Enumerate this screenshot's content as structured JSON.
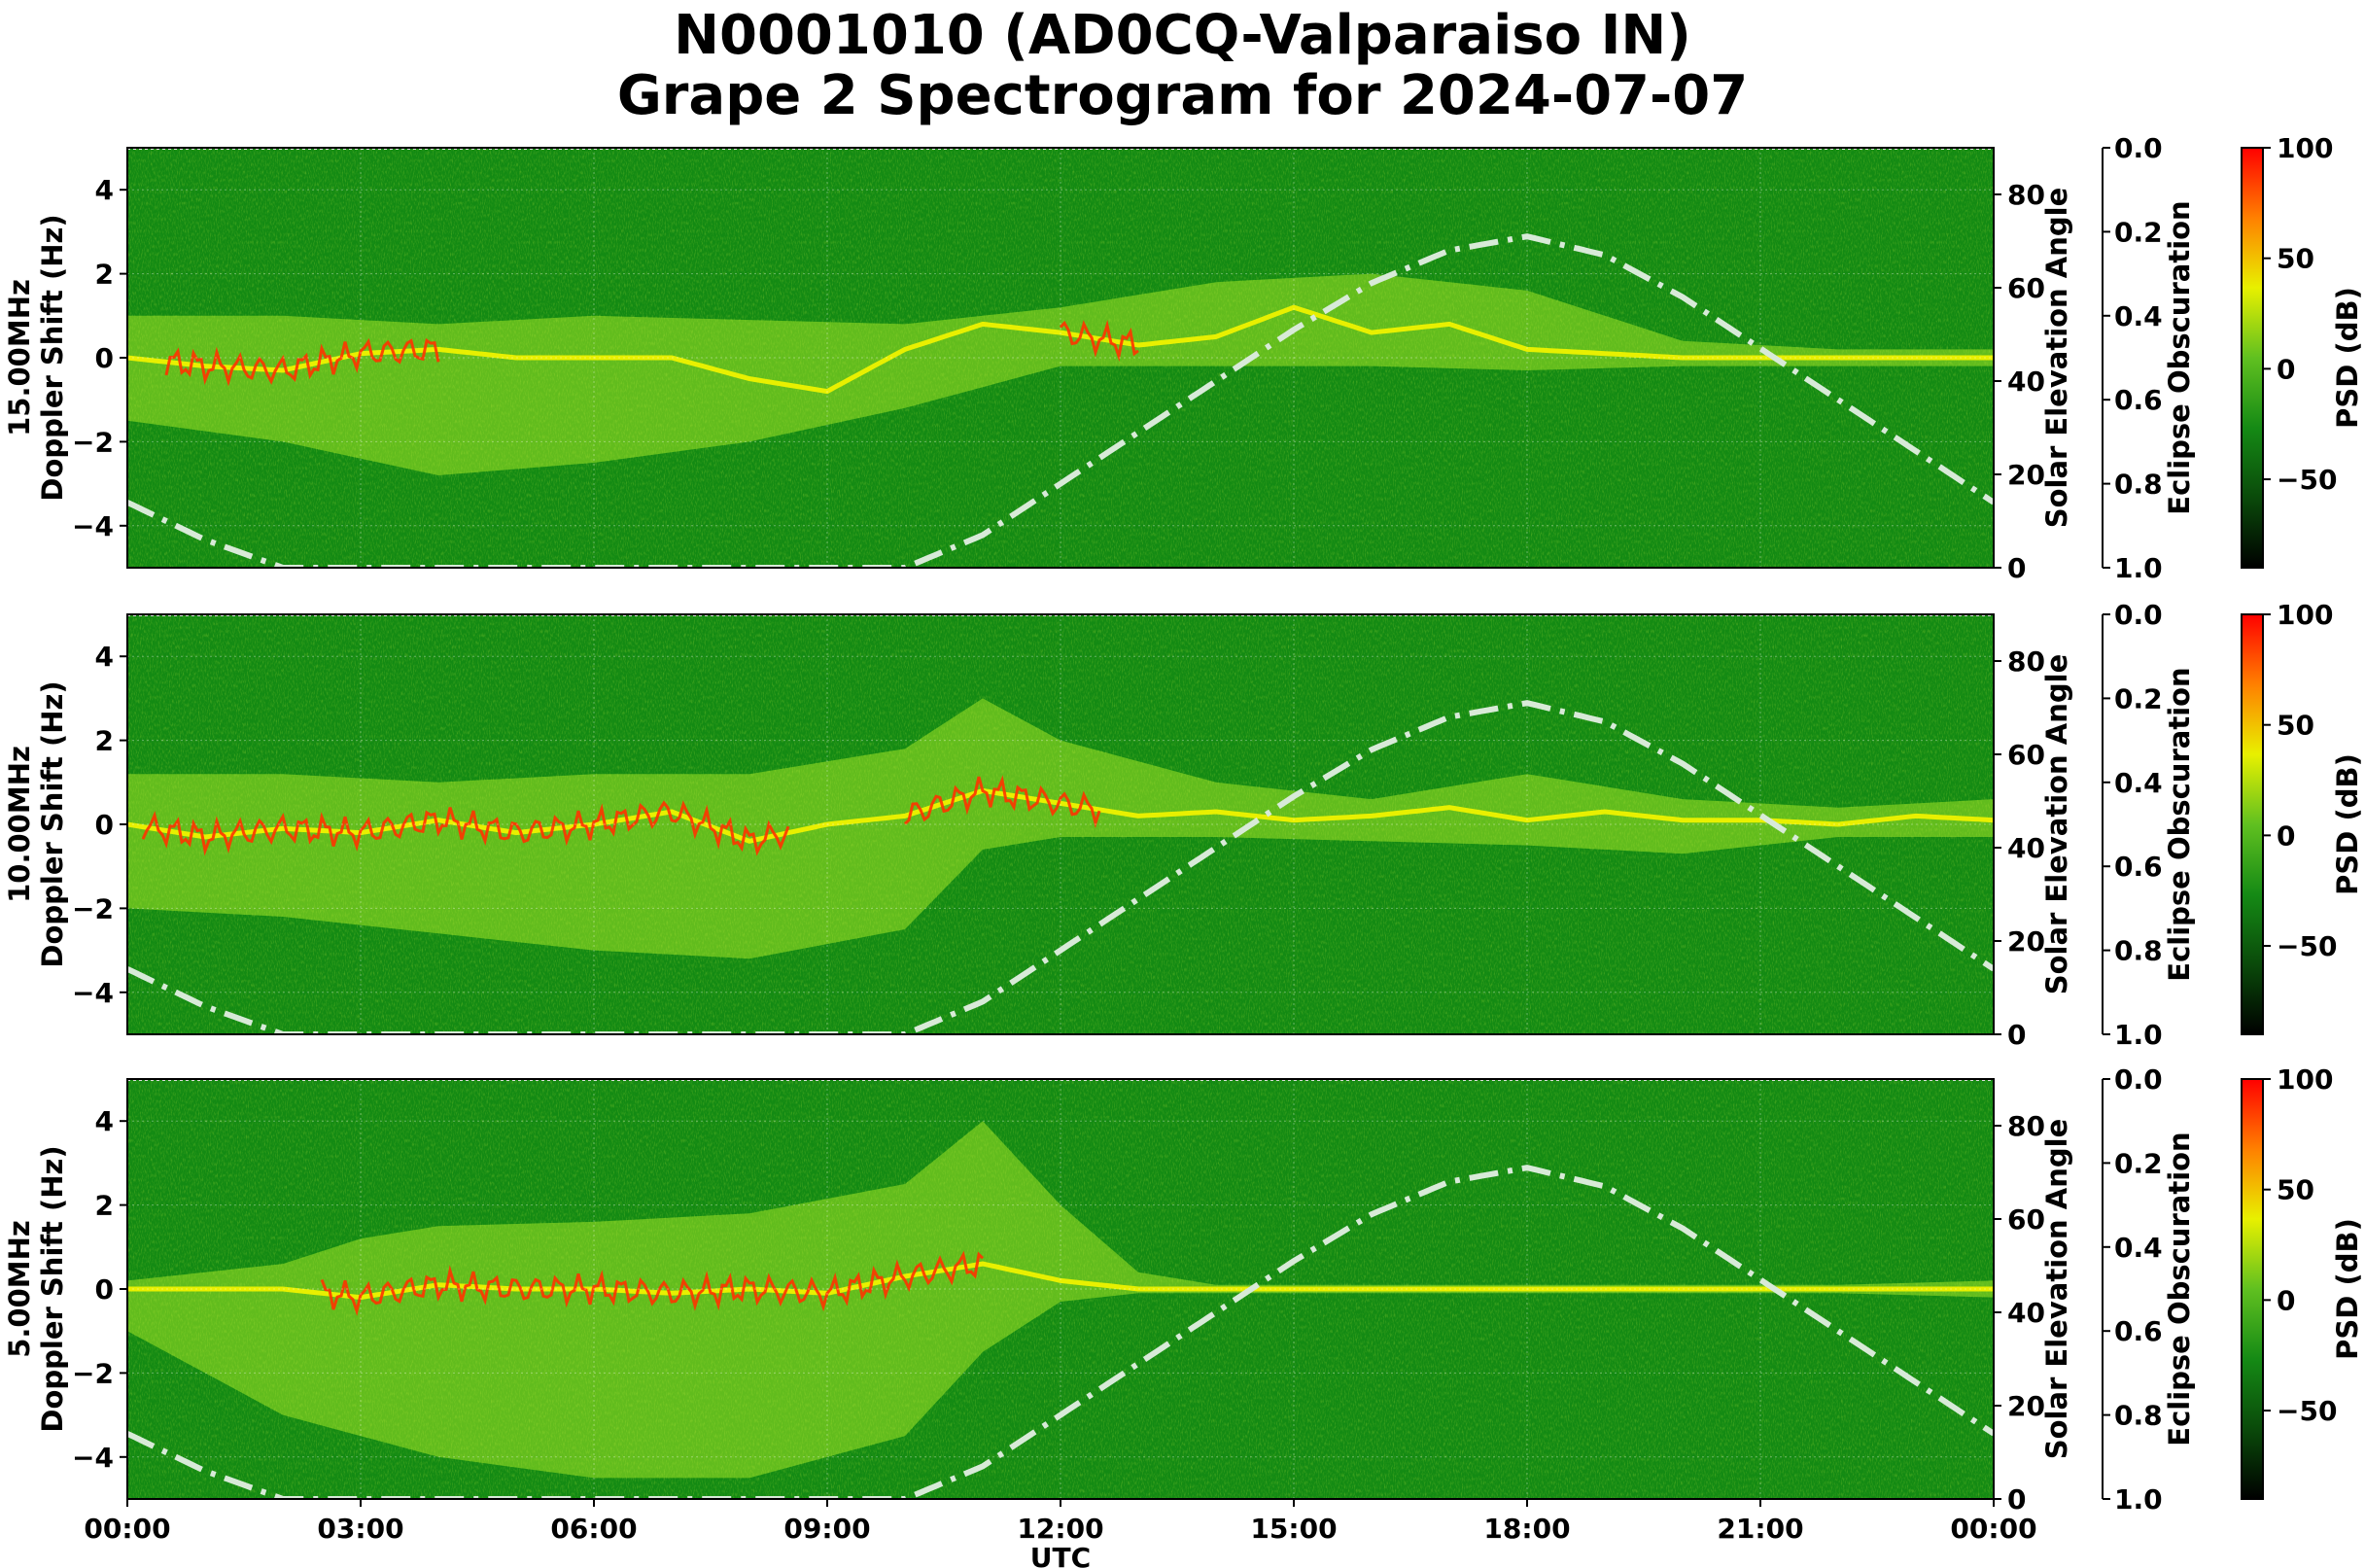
{
  "figure": {
    "title_line1": "N0001010 (AD0CQ-Valparaiso IN)",
    "title_line2": "Grape 2 Spectrogram for 2024-07-07"
  },
  "chart_data": {
    "type": "heatmap",
    "subtype": "spectrogram",
    "x_label": "UTC",
    "x_ticks": [
      "00:00",
      "03:00",
      "06:00",
      "09:00",
      "12:00",
      "15:00",
      "18:00",
      "21:00",
      "00:00"
    ],
    "x_range_hours": [
      0,
      24
    ],
    "y_ticks": [
      4,
      2,
      0,
      -2,
      -4
    ],
    "y_range": [
      -5,
      5
    ],
    "solar_elevation_ticks": [
      0,
      20,
      40,
      60,
      80
    ],
    "solar_elevation_range": [
      0,
      90
    ],
    "eclipse_ticks": [
      "0.0",
      "0.2",
      "0.4",
      "0.6",
      "0.8",
      "1.0"
    ],
    "colorbar": {
      "label": "PSD (dB)",
      "ticks": [
        100,
        50,
        0,
        -50
      ],
      "range": [
        -90,
        100
      ],
      "colors": [
        "#000000",
        "#0a4a0a",
        "#158a15",
        "#60c020",
        "#e8f000",
        "#ff8000",
        "#ff0000"
      ]
    },
    "elevation_curve": {
      "style": "dash-dot",
      "color": "#d8ead8",
      "hours": [
        0,
        1,
        2,
        3,
        4,
        5,
        6,
        7,
        8,
        9,
        10,
        11,
        12,
        13,
        14,
        15,
        16,
        17,
        18,
        19,
        20,
        21,
        22,
        23,
        24
      ],
      "elevation": [
        14,
        6,
        0,
        0,
        0,
        0,
        0,
        0,
        0,
        0,
        0,
        7,
        18,
        29,
        40,
        51,
        61,
        68,
        71,
        67,
        58,
        47,
        36,
        25,
        14
      ]
    },
    "panels": [
      {
        "name": "15.00MHz",
        "ylabel_line1": "15.00MHz",
        "ylabel_line2": "Doppler Shift (Hz)",
        "right_label": "Solar Elevation Angle",
        "eclipse_label": "Eclipse Obscuration",
        "carrier_trace": {
          "hours": [
            0,
            1,
            2,
            3,
            4,
            5,
            6,
            7,
            8,
            9,
            10,
            11,
            12,
            13,
            14,
            15,
            16,
            17,
            18,
            19,
            20,
            21,
            22,
            23,
            24
          ],
          "doppler_hz": [
            0,
            -0.2,
            -0.3,
            0.1,
            0.2,
            0,
            0,
            0,
            -0.5,
            -0.8,
            0.2,
            0.8,
            0.6,
            0.3,
            0.5,
            1.2,
            0.6,
            0.8,
            0.2,
            0.1,
            0,
            0,
            0,
            0,
            0
          ]
        },
        "hot_segments": [
          [
            0.5,
            4.0
          ],
          [
            12.0,
            13.0
          ]
        ],
        "scatter_envelope": {
          "hours": [
            0,
            2,
            4,
            6,
            8,
            10,
            12,
            14,
            16,
            18,
            20,
            22,
            24
          ],
          "upper_hz": [
            1.0,
            1.0,
            0.8,
            1.0,
            0.9,
            0.8,
            1.2,
            1.8,
            2.0,
            1.6,
            0.4,
            0.2,
            0.2
          ],
          "lower_hz": [
            -1.5,
            -2.0,
            -2.8,
            -2.5,
            -2.0,
            -1.2,
            -0.2,
            -0.2,
            -0.2,
            -0.3,
            -0.2,
            -0.2,
            -0.2
          ]
        }
      },
      {
        "name": "10.00MHz",
        "ylabel_line1": "10.00MHz",
        "ylabel_line2": "Doppler Shift (Hz)",
        "right_label": "Solar Elevation Angle",
        "eclipse_label": "Eclipse Obscuration",
        "carrier_trace": {
          "hours": [
            0,
            1,
            2,
            3,
            4,
            5,
            6,
            7,
            8,
            9,
            10,
            11,
            12,
            13,
            14,
            15,
            16,
            17,
            18,
            19,
            20,
            21,
            22,
            23,
            24
          ],
          "doppler_hz": [
            0,
            -0.3,
            -0.1,
            -0.2,
            0.1,
            -0.2,
            0,
            0.3,
            -0.4,
            0,
            0.2,
            0.8,
            0.5,
            0.2,
            0.3,
            0.1,
            0.2,
            0.4,
            0.1,
            0.3,
            0.1,
            0.1,
            0,
            0.2,
            0.1
          ]
        },
        "hot_segments": [
          [
            0.2,
            8.5
          ],
          [
            10.0,
            12.5
          ]
        ],
        "scatter_envelope": {
          "hours": [
            0,
            2,
            4,
            6,
            8,
            10,
            11,
            12,
            14,
            16,
            18,
            20,
            22,
            24
          ],
          "upper_hz": [
            1.2,
            1.2,
            1.0,
            1.2,
            1.2,
            1.8,
            3.0,
            2.0,
            1.0,
            0.6,
            1.2,
            0.6,
            0.4,
            0.6
          ],
          "lower_hz": [
            -2.0,
            -2.2,
            -2.6,
            -3.0,
            -3.2,
            -2.5,
            -0.6,
            -0.3,
            -0.3,
            -0.4,
            -0.5,
            -0.7,
            -0.3,
            -0.3
          ]
        }
      },
      {
        "name": "5.00MHz",
        "ylabel_line1": "5.00MHz",
        "ylabel_line2": "Doppler Shift (Hz)",
        "right_label": "Solar Elevation Angle",
        "eclipse_label": "Eclipse Obscuration",
        "carrier_trace": {
          "hours": [
            0,
            1,
            2,
            3,
            4,
            5,
            6,
            7,
            8,
            9,
            10,
            11,
            12,
            13,
            14,
            15,
            16,
            17,
            18,
            19,
            20,
            21,
            22,
            23,
            24
          ],
          "doppler_hz": [
            0,
            0,
            0,
            -0.2,
            0.1,
            0,
            0,
            -0.1,
            0,
            -0.1,
            0.3,
            0.6,
            0.2,
            0,
            0,
            0,
            0,
            0,
            0,
            0,
            0,
            0,
            0,
            0,
            0
          ]
        },
        "hot_segments": [
          [
            2.5,
            11.0
          ]
        ],
        "scatter_envelope": {
          "hours": [
            0,
            2,
            3,
            4,
            6,
            8,
            10,
            11,
            12,
            13,
            14,
            16,
            18,
            20,
            22,
            24
          ],
          "upper_hz": [
            0.2,
            0.6,
            1.2,
            1.5,
            1.6,
            1.8,
            2.5,
            4.0,
            2.0,
            0.4,
            0.1,
            0.1,
            0.1,
            0.1,
            0.1,
            0.2
          ],
          "lower_hz": [
            -1.0,
            -3.0,
            -3.5,
            -4.0,
            -4.5,
            -4.5,
            -3.5,
            -1.5,
            -0.3,
            -0.1,
            -0.1,
            -0.1,
            -0.1,
            -0.1,
            -0.1,
            -0.2
          ]
        }
      }
    ]
  }
}
